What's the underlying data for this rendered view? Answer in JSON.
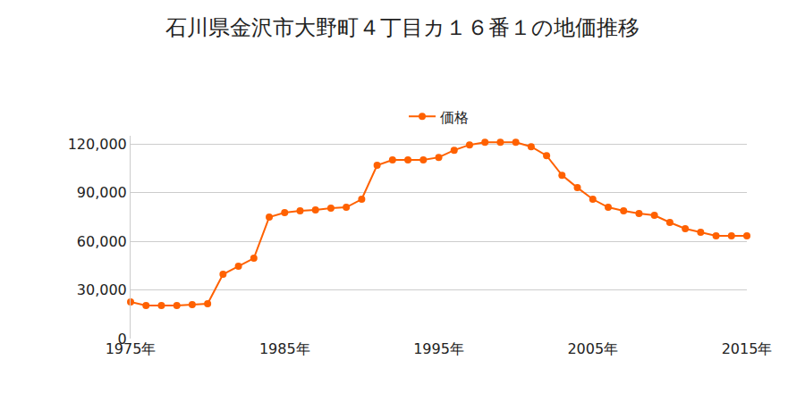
{
  "chart_data": {
    "type": "line",
    "title": "石川県金沢市大野町４丁目カ１６番１の地価推移",
    "x": [
      1975,
      1976,
      1977,
      1978,
      1979,
      1980,
      1981,
      1982,
      1983,
      1984,
      1985,
      1986,
      1987,
      1988,
      1989,
      1990,
      1991,
      1992,
      1993,
      1994,
      1995,
      1996,
      1997,
      1998,
      1999,
      2000,
      2001,
      2002,
      2003,
      2004,
      2005,
      2006,
      2007,
      2008,
      2009,
      2010,
      2011,
      2012,
      2013,
      2014,
      2015
    ],
    "series": [
      {
        "name": "価格",
        "color": "#ff6100",
        "marker": "circle",
        "values": [
          22600,
          20400,
          20400,
          20400,
          20900,
          21500,
          39600,
          44600,
          49500,
          74900,
          77600,
          78700,
          79300,
          80400,
          80900,
          85900,
          106800,
          110100,
          110100,
          110100,
          111700,
          116100,
          119400,
          121000,
          121000,
          121000,
          118300,
          112800,
          100700,
          93000,
          85900,
          80900,
          78700,
          77100,
          76000,
          71600,
          67700,
          65500,
          63300,
          63300,
          63300
        ]
      }
    ],
    "xlim": [
      1975,
      2015
    ],
    "xticks": [
      {
        "value": 1975,
        "label": "1975年"
      },
      {
        "value": 1985,
        "label": "1985年"
      },
      {
        "value": 1995,
        "label": "1995年"
      },
      {
        "value": 2005,
        "label": "2005年"
      },
      {
        "value": 2015,
        "label": "2015年"
      }
    ],
    "ylim": [
      0,
      125000
    ],
    "yticks": [
      0,
      {
        "value": 30000,
        "label": "30,000"
      },
      {
        "value": 60000,
        "label": "60,000"
      },
      {
        "value": 90000,
        "label": "90,000"
      },
      {
        "value": 120000,
        "label": "120,000"
      }
    ],
    "grid": true,
    "legend": "top"
  }
}
